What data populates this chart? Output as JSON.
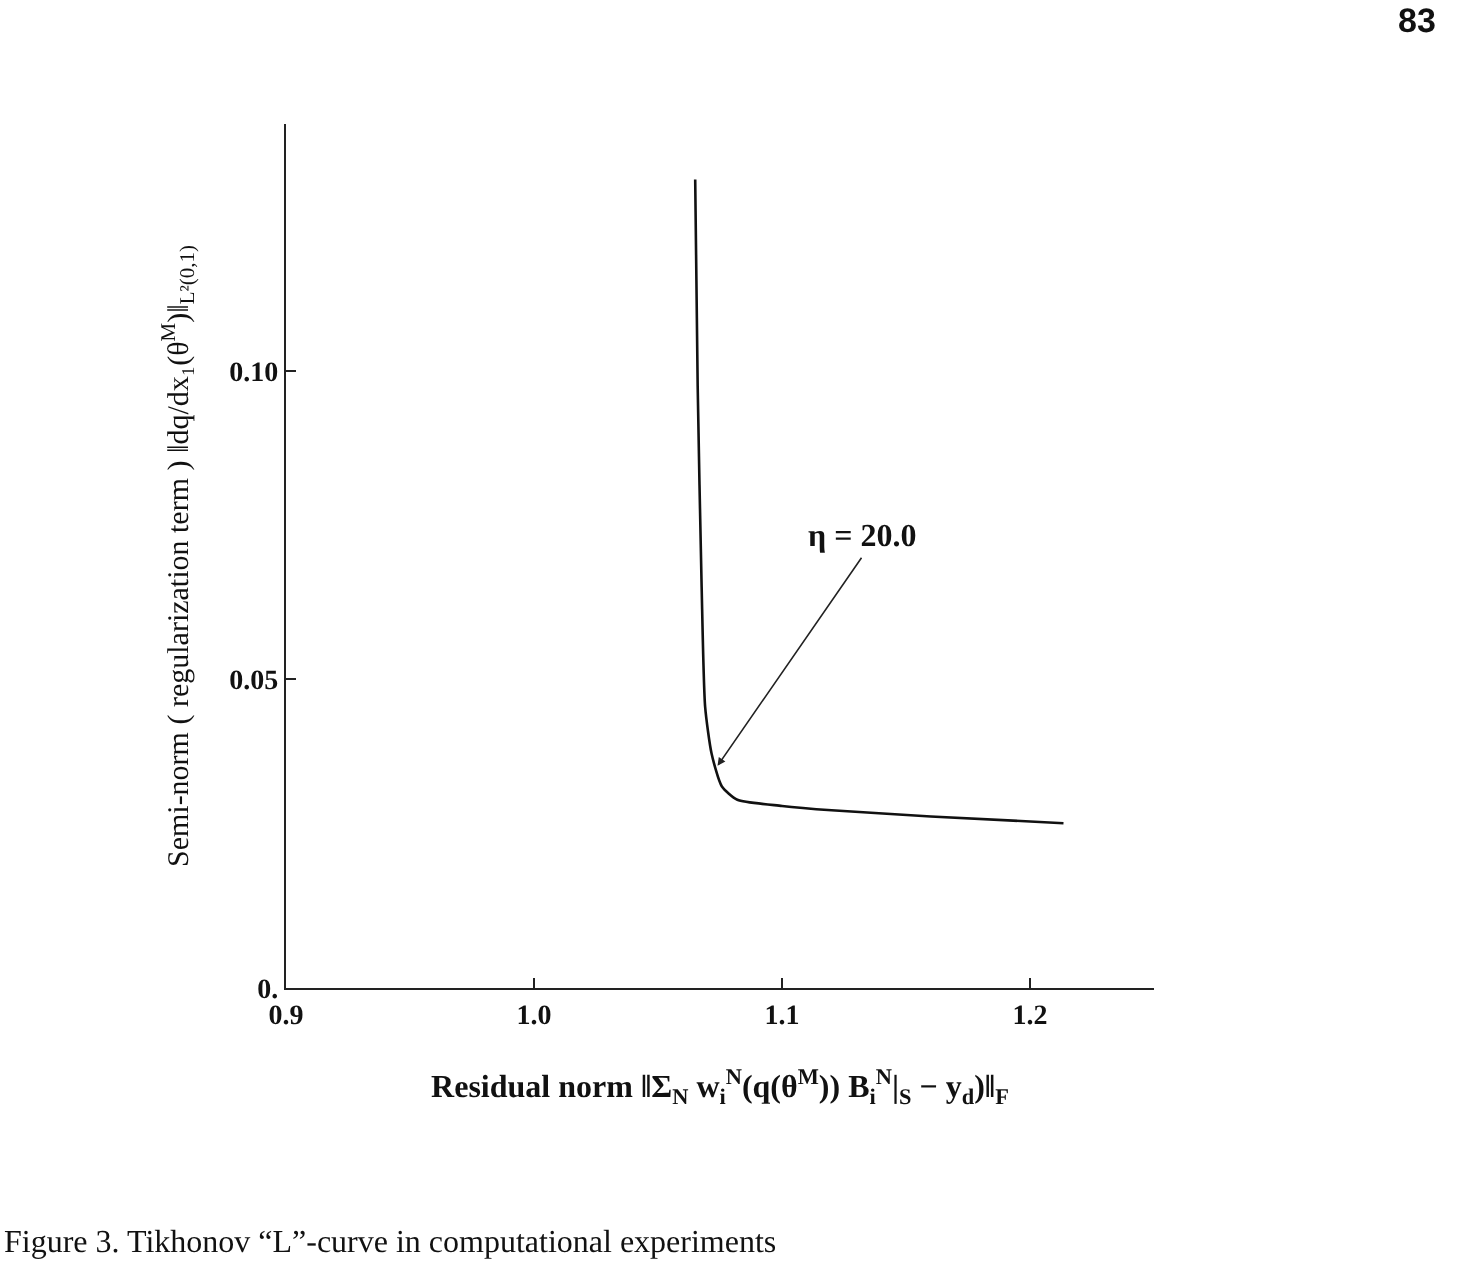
{
  "chart_data": {
    "type": "line",
    "xlabel": "Residual norm ‖Σ$_{N}$ w$_{i}$$^{N}$(q(θ$^{M}$)) B$_{i}$$^{N}$|$_{S}$ − y$_{d}$)‖$_{F}$",
    "ylabel": "Semi-norm ( regularization term ) ‖dq/dx₁(θ$^{M}$)‖$_{L²(0,1)}$",
    "annotations": [
      "83",
      "Figure 3. Tikhonov “L”-curve in computational experiments",
      {
        "text": "η = 20.0",
        "x": 1.074,
        "y": 0.036
      }
    ],
    "x": [
      1.065,
      1.066,
      1.0676,
      1.069,
      1.0716,
      1.0757,
      1.082,
      1.1,
      1.12,
      1.16,
      1.2135
    ],
    "series": [
      {
        "color": "#111111",
        "values": [
          0.131,
          0.0975,
          0.065,
          0.0456,
          0.038,
          0.0327,
          0.0305,
          0.0295,
          0.0288,
          0.0278,
          0.0267
        ]
      }
    ],
    "xlim": [
      0.9,
      1.25
    ],
    "ylim": [
      0,
      0.14
    ],
    "xticks": [
      {
        "value": 0.9,
        "label": "0.9"
      },
      {
        "value": 1.0,
        "label": "1.0"
      },
      {
        "value": 1.1,
        "label": "1.1"
      },
      {
        "value": 1.2,
        "label": "1.2"
      }
    ],
    "yticks": [
      {
        "value": 0,
        "label": "0."
      },
      0.05,
      {
        "value": 0.1,
        "label": "0.10"
      }
    ],
    "grid": false,
    "marker": "none",
    "line_style": "solid"
  }
}
